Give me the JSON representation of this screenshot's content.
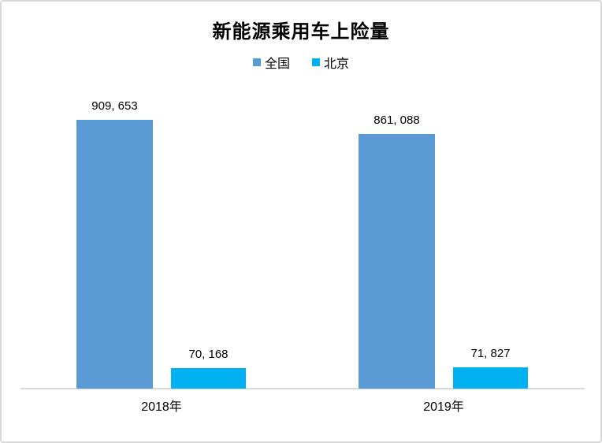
{
  "chart": {
    "title": "新能源乘用车上险量"
  },
  "chart_data": {
    "type": "bar",
    "title": "新能源乘用车上险量",
    "xlabel": "",
    "ylabel": "",
    "categories": [
      "2018年",
      "2019年"
    ],
    "category_ids": [
      "2018",
      "2019"
    ],
    "series": [
      {
        "id": "national",
        "name": "全国",
        "color": "#5B9BD5",
        "values": [
          909653,
          861088
        ],
        "labels": [
          "909, 653",
          "861, 088"
        ]
      },
      {
        "id": "beijing",
        "name": "北京",
        "color": "#00B0F0",
        "values": [
          70168,
          71827
        ],
        "labels": [
          "70, 168",
          "71, 827"
        ]
      }
    ],
    "ylim": [
      0,
      970000
    ],
    "grid": false,
    "axis_line_color": "#D9D9D9",
    "legend_position": "top",
    "data_labels": true
  }
}
